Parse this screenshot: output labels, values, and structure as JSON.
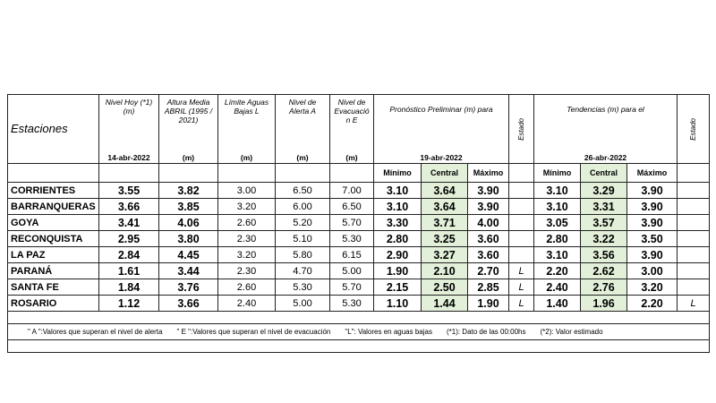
{
  "header": {
    "station": "Estaciones",
    "columns": [
      {
        "label": "Nivel Hoy (*1) (m)",
        "sub": "14-abr-2022"
      },
      {
        "label": "Altura Media ABRIL (1995 / 2021)",
        "sub": "(m)"
      },
      {
        "label": "Límite Aguas Bajas L",
        "sub": "(m)"
      },
      {
        "label": "Nivel de Alerta A",
        "sub": "(m)"
      },
      {
        "label": "Nivel de Evacuació n E",
        "sub": "(m)"
      }
    ],
    "forecast": {
      "label": "Pronóstico Preliminar (m) para",
      "date": "19-abr-2022",
      "cols": [
        "Mínimo",
        "Central",
        "Máximo"
      ]
    },
    "state": "Estado",
    "trend": {
      "label": "Tendencias (m) para el",
      "date": "26-abr-2022",
      "cols": [
        "Mínimo",
        "Central",
        "Máximo"
      ]
    },
    "state2": "Estado"
  },
  "rows": [
    {
      "station": "CORRIENTES",
      "values": [
        "3.55",
        "3.82",
        "3.00",
        "6.50",
        "7.00"
      ],
      "forecast": [
        "3.10",
        "3.64",
        "3.90"
      ],
      "state": null,
      "trend": [
        "3.10",
        "3.29",
        "3.90"
      ],
      "state2": null
    },
    {
      "station": "BARRANQUERAS",
      "values": [
        "3.66",
        "3.85",
        "3.20",
        "6.00",
        "6.50"
      ],
      "forecast": [
        "3.10",
        "3.64",
        "3.90"
      ],
      "state": null,
      "trend": [
        "3.10",
        "3.31",
        "3.90"
      ],
      "state2": null
    },
    {
      "station": "GOYA",
      "values": [
        "3.41",
        "4.06",
        "2.60",
        "5.20",
        "5.70"
      ],
      "forecast": [
        "3.30",
        "3.71",
        "4.00"
      ],
      "state": null,
      "trend": [
        "3.05",
        "3.57",
        "3.90"
      ],
      "state2": null
    },
    {
      "station": "RECONQUISTA",
      "values": [
        "2.95",
        "3.80",
        "2.30",
        "5.10",
        "5.30"
      ],
      "forecast": [
        "2.80",
        "3.25",
        "3.60"
      ],
      "state": null,
      "trend": [
        "2.80",
        "3.22",
        "3.50"
      ],
      "state2": null
    },
    {
      "station": "LA PAZ",
      "values": [
        "2.84",
        "4.45",
        "3.20",
        "5.80",
        "6.15"
      ],
      "forecast": [
        "2.90",
        "3.27",
        "3.60"
      ],
      "state": null,
      "trend": [
        "3.10",
        "3.56",
        "3.90"
      ],
      "state2": null
    },
    {
      "station": "PARANÁ",
      "values": [
        "1.61",
        "3.44",
        "2.30",
        "4.70",
        "5.00"
      ],
      "forecast": [
        "1.90",
        "2.10",
        "2.70"
      ],
      "state": "L",
      "trend": [
        "2.20",
        "2.62",
        "3.00"
      ],
      "state2": null
    },
    {
      "station": "SANTA FE",
      "values": [
        "1.84",
        "3.76",
        "2.60",
        "5.30",
        "5.70"
      ],
      "forecast": [
        "2.15",
        "2.50",
        "2.85"
      ],
      "state": "L",
      "trend": [
        "2.40",
        "2.76",
        "3.20"
      ],
      "state2": null
    },
    {
      "station": "ROSARIO",
      "values": [
        "1.12",
        "3.66",
        "2.40",
        "5.00",
        "5.30"
      ],
      "forecast": [
        "1.10",
        "1.44",
        "1.90"
      ],
      "state": "L",
      "trend": [
        "1.40",
        "1.96",
        "2.20"
      ],
      "state2": "L"
    }
  ],
  "notes": [
    "\" A \":Valores que superan el nivel de alerta",
    "\" E \":Valores que superan el nivel de evacuación",
    "\"L\": Valores en aguas bajas",
    "(*1): Dato de las 00:00hs",
    "(*2): Valor estimado"
  ]
}
